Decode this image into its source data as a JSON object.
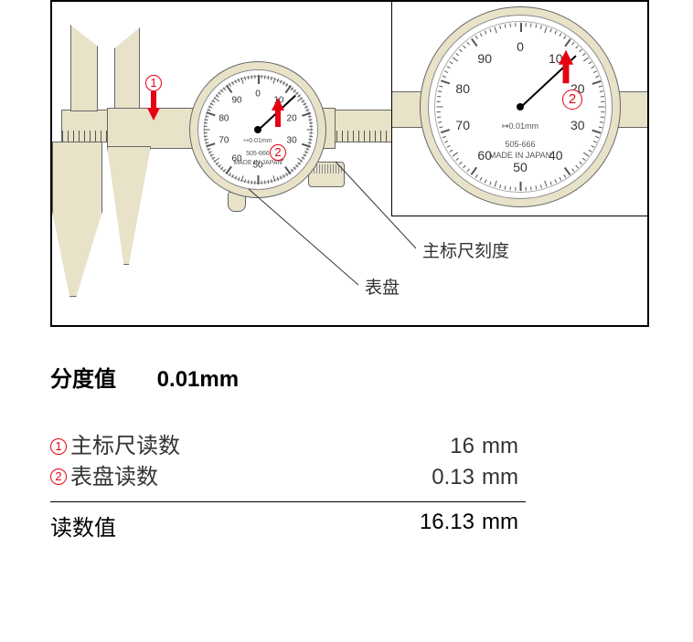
{
  "diagram": {
    "caliper_color": "#e8e2c9",
    "stroke_color": "#666666",
    "arrow_color": "#e60012",
    "dial": {
      "needle_angle_deg": 47,
      "numbers": [
        "0",
        "10",
        "20",
        "30",
        "40",
        "50",
        "60",
        "70",
        "80",
        "90"
      ],
      "resolution_text": "0.01mm",
      "model_text": "505-666",
      "origin_text": "MADE IN JAPAN"
    },
    "callouts": {
      "main_scale": "主标尺刻度",
      "dial_face": "表盘",
      "marker1": "1",
      "marker2": "2"
    }
  },
  "readings": {
    "graduation_label": "分度值",
    "graduation_value": "0.01mm",
    "rows": [
      {
        "marker": "1",
        "label": "主标尺读数",
        "value": "16",
        "unit": "mm"
      },
      {
        "marker": "2",
        "label": "表盘读数",
        "value": "0.13",
        "unit": "mm"
      }
    ],
    "total_label": "读数值",
    "total_value": "16.13",
    "total_unit": "mm"
  }
}
